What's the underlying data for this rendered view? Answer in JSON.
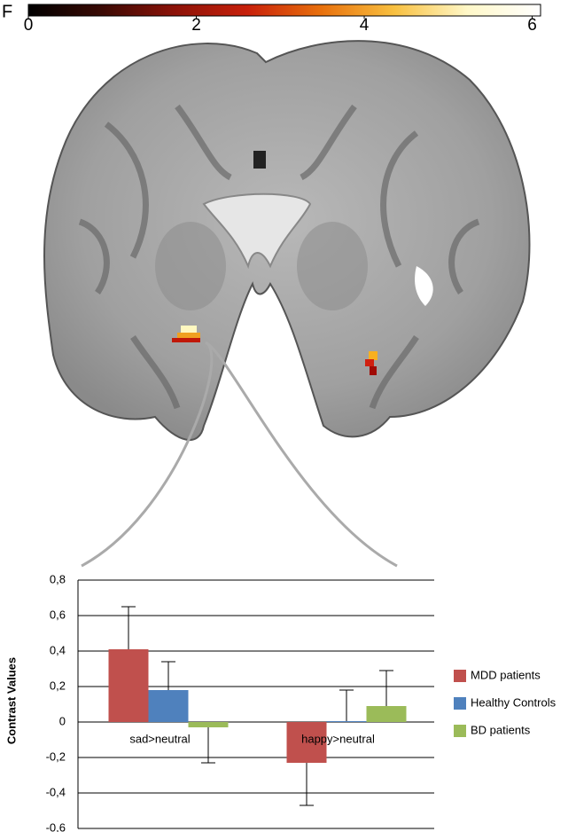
{
  "panel_label": "F",
  "chart_data": [
    {
      "type": "colorbar",
      "colormap": [
        "#000000",
        "#3a0a04",
        "#8c1208",
        "#c8200a",
        "#e8700c",
        "#f8c040",
        "#fff8c8",
        "#ffffff"
      ],
      "xlim": [
        0,
        6.1
      ],
      "xticks": [
        0,
        2,
        4,
        6
      ]
    },
    {
      "type": "bar",
      "y_label": "Contrast Values",
      "categories": [
        "sad>neutral",
        "happy>neutral"
      ],
      "series": [
        {
          "name": "MDD patients",
          "color": "#c0504d",
          "values": [
            0.41,
            -0.23
          ],
          "errors": [
            0.24,
            0.24
          ]
        },
        {
          "name": "Healthy Controls",
          "color": "#4f81bd",
          "values": [
            0.18,
            0.005
          ],
          "errors": [
            0.16,
            0.175
          ]
        },
        {
          "name": "BD patients",
          "color": "#9bbb59",
          "values": [
            -0.03,
            0.09
          ],
          "errors": [
            0.2,
            0.2
          ]
        }
      ],
      "ylim": [
        -0.6,
        0.8
      ],
      "yticks": [
        {
          "value": -0.6,
          "label": "-0,6"
        },
        {
          "value": -0.4,
          "label": "-0,4"
        },
        {
          "value": -0.2,
          "label": "-0,2"
        },
        0,
        {
          "value": 0.2,
          "label": "0,2"
        },
        {
          "value": 0.4,
          "label": "0,4"
        },
        {
          "value": 0.6,
          "label": "0,6"
        },
        {
          "value": 0.8,
          "label": "0,8"
        }
      ],
      "grid": true,
      "legend": "right"
    }
  ]
}
